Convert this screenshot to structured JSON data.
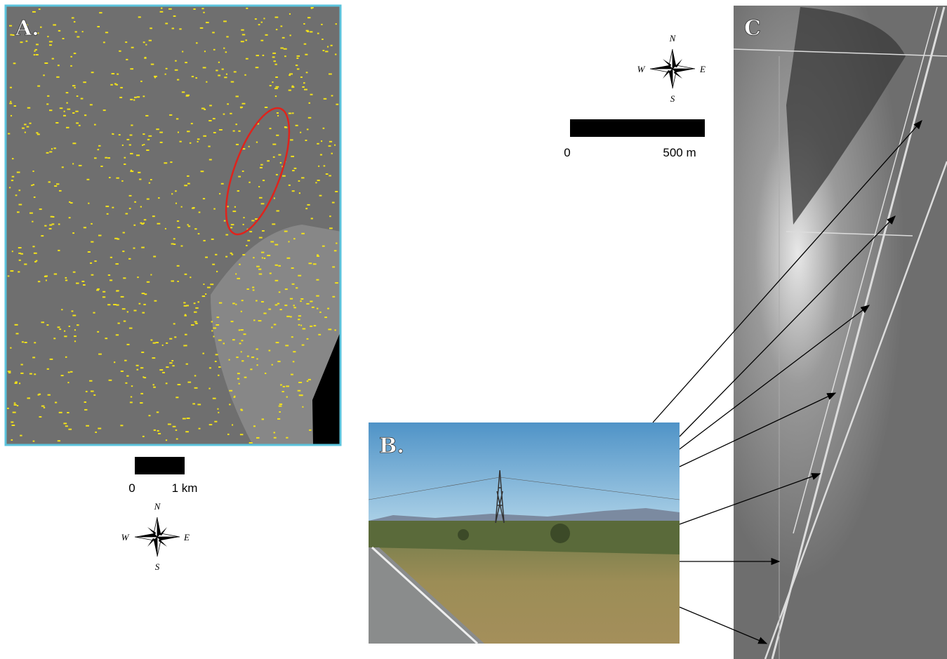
{
  "panels": {
    "a": {
      "label": "A.",
      "scale": {
        "start": "0",
        "end": "1 km"
      },
      "compass": {
        "north": "N",
        "west": "W",
        "east": "E",
        "south": "S"
      }
    },
    "b": {
      "label": "B."
    },
    "c": {
      "label": "C",
      "scale": {
        "start": "0",
        "end": "500 m"
      },
      "compass": {
        "north": "N",
        "west": "W",
        "east": "E",
        "south": "S"
      }
    }
  }
}
